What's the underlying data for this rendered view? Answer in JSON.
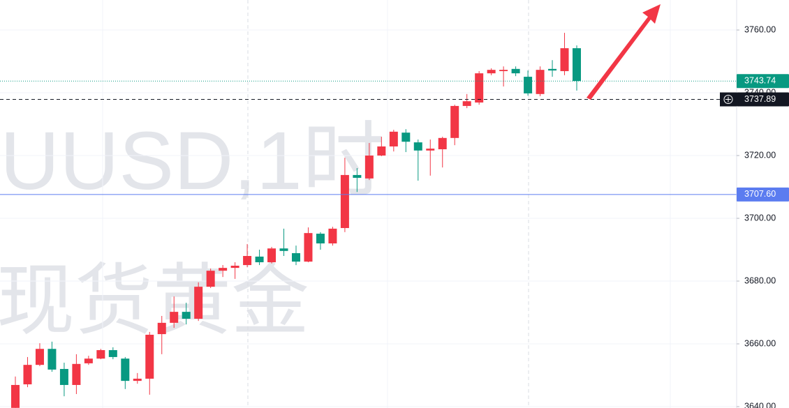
{
  "chart_data": {
    "type": "candlestick",
    "watermark": [
      "UUSD,1时",
      "现货黄金"
    ],
    "up_color": "#f23645",
    "down_color": "#089981",
    "open": [
      3639.6,
      3647.1,
      3653.3,
      3658.4,
      3652.0,
      3646.9,
      3653.8,
      3655.3,
      3658.0,
      3655.3,
      3648.2,
      3648.9,
      3663.1,
      3666.7,
      3670.2,
      3668.0,
      3678.2,
      3683.3,
      3684.2,
      3685.1,
      3687.8,
      3686.0,
      3690.4,
      3688.9,
      3686.2,
      3695.1,
      3692.0,
      3696.9,
      3713.8,
      3712.7,
      3720.0,
      3722.9,
      3727.3,
      3724.2,
      3721.6,
      3722.0,
      3725.6,
      3735.8,
      3736.9,
      3746.2,
      3746.9,
      3747.6,
      3745.1,
      3739.6,
      3747.6,
      3746.9,
      3754.2
    ],
    "high": [
      3649.6,
      3655.8,
      3660.2,
      3660.7,
      3654.0,
      3656.7,
      3656.2,
      3658.4,
      3658.9,
      3655.8,
      3650.7,
      3663.8,
      3668.9,
      3675.1,
      3673.1,
      3679.6,
      3684.0,
      3685.1,
      3686.0,
      3691.8,
      3690.0,
      3690.9,
      3696.7,
      3691.3,
      3697.1,
      3695.6,
      3697.3,
      3719.3,
      3716.0,
      3724.0,
      3726.0,
      3728.2,
      3728.4,
      3725.1,
      3725.1,
      3726.0,
      3736.2,
      3739.6,
      3746.9,
      3747.8,
      3748.4,
      3748.4,
      3747.1,
      3748.4,
      3750.4,
      3759.1,
      3755.1
    ],
    "low": [
      3639.6,
      3646.2,
      3652.9,
      3651.1,
      3643.3,
      3644.0,
      3653.3,
      3655.1,
      3655.1,
      3645.6,
      3647.3,
      3643.8,
      3656.7,
      3665.1,
      3666.2,
      3667.3,
      3677.8,
      3681.3,
      3680.7,
      3684.4,
      3685.1,
      3685.6,
      3688.0,
      3685.1,
      3686.0,
      3690.0,
      3691.3,
      3695.6,
      3708.4,
      3712.2,
      3719.8,
      3721.3,
      3721.1,
      3712.0,
      3713.6,
      3716.2,
      3723.3,
      3735.1,
      3736.2,
      3745.6,
      3742.0,
      3745.3,
      3739.1,
      3738.9,
      3745.1,
      3745.6,
      3740.7
    ],
    "close": [
      3646.9,
      3653.3,
      3658.4,
      3651.8,
      3646.9,
      3653.6,
      3655.3,
      3658.0,
      3655.8,
      3648.2,
      3648.9,
      3662.9,
      3666.7,
      3670.2,
      3668.0,
      3678.2,
      3683.3,
      3684.2,
      3684.9,
      3688.0,
      3686.0,
      3690.4,
      3689.6,
      3686.2,
      3695.3,
      3692.0,
      3696.7,
      3713.8,
      3712.9,
      3720.0,
      3722.9,
      3727.6,
      3724.4,
      3721.6,
      3722.2,
      3725.6,
      3735.8,
      3737.3,
      3746.2,
      3747.3,
      3747.3,
      3746.2,
      3739.8,
      3747.3,
      3747.1,
      3754.2,
      3743.74
    ],
    "ylim": [
      3639.56,
      3769.56
    ],
    "yticks": [
      {
        "value": 3640,
        "label": "3640.00"
      },
      {
        "value": 3660,
        "label": "3660.00"
      },
      {
        "value": 3680,
        "label": "3680.00"
      },
      {
        "value": 3700,
        "label": "3700.00"
      },
      {
        "value": 3720,
        "label": "3720.00"
      },
      {
        "value": 3740,
        "label": "3740.00"
      },
      {
        "value": 3760,
        "label": "3760.00"
      }
    ],
    "grid": true,
    "price_lines": [
      {
        "value": 3743.74,
        "label": "3743.74",
        "color": "#089981",
        "style": "dotted"
      },
      {
        "value": 3737.89,
        "label": "3737.89",
        "color": "#131722",
        "style": "dashed"
      },
      {
        "value": 3707.6,
        "label": "3707.60",
        "color": "#5b7cf0",
        "style": "solid"
      }
    ]
  }
}
